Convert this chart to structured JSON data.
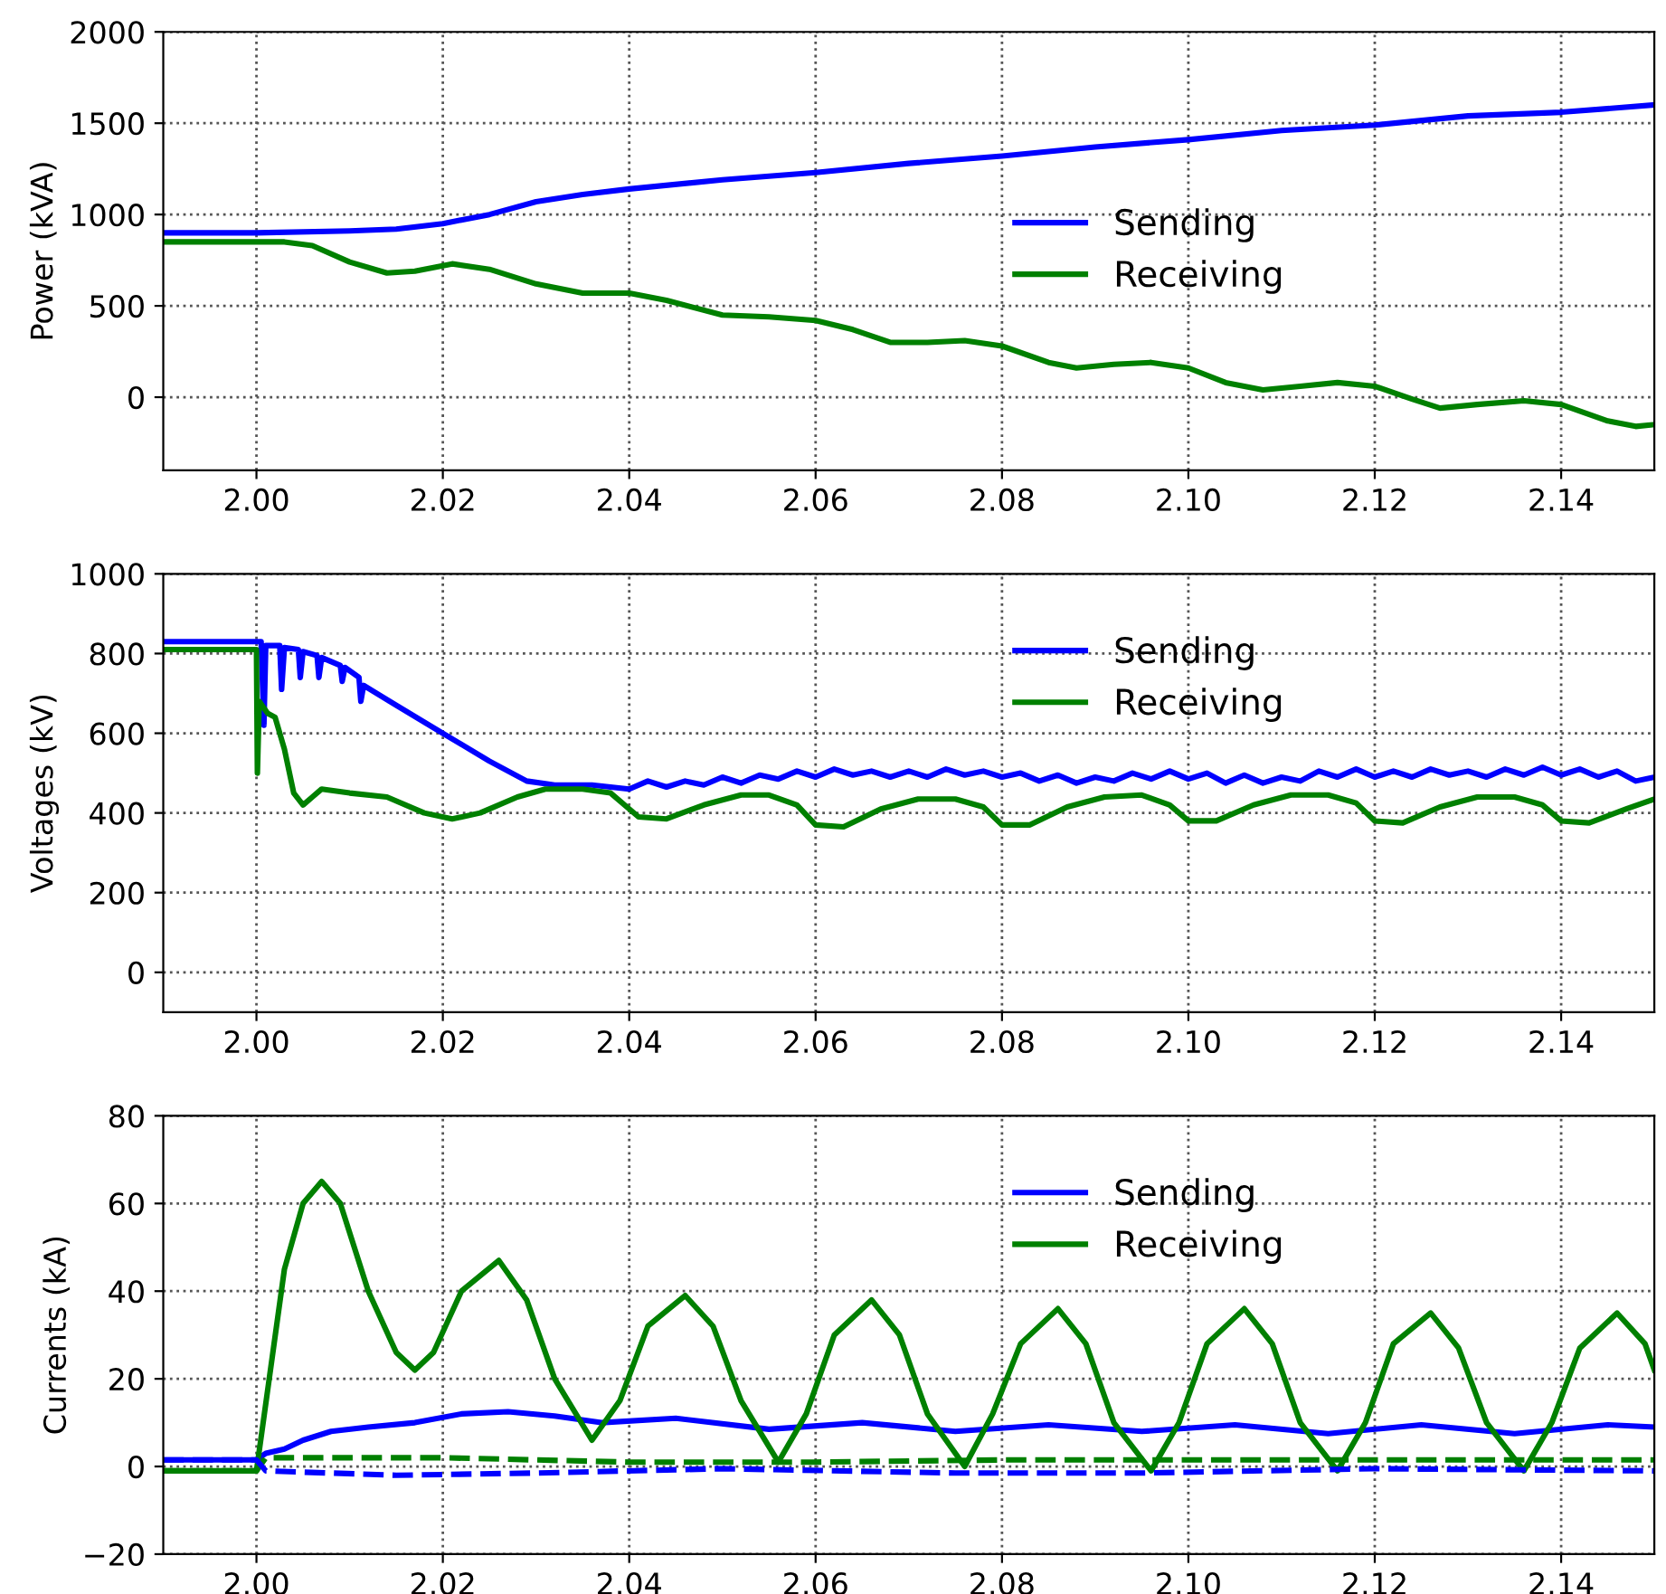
{
  "chart_data": [
    {
      "type": "line",
      "ylabel": "Power (kVA)",
      "xlim": [
        1.99,
        2.15
      ],
      "ylim": [
        -400,
        2000
      ],
      "yticks": [
        0,
        500,
        1000,
        1500,
        2000
      ],
      "xticks": [
        {
          "value": 2.0,
          "label": "2.00"
        },
        {
          "value": 2.02,
          "label": "2.02"
        },
        {
          "value": 2.04,
          "label": "2.04"
        },
        {
          "value": 2.06,
          "label": "2.06"
        },
        {
          "value": 2.08,
          "label": "2.08"
        },
        {
          "value": 2.1,
          "label": "2.10"
        },
        {
          "value": 2.12,
          "label": "2.12"
        },
        {
          "value": 2.14,
          "label": "2.14"
        }
      ],
      "grid": true,
      "legend": "center right",
      "line_style": "solid",
      "series": [
        {
          "name": "Sending",
          "color": "#0000ff",
          "x": [
            1.99,
            2.0,
            2.01,
            2.015,
            2.02,
            2.025,
            2.03,
            2.035,
            2.04,
            2.05,
            2.06,
            2.07,
            2.08,
            2.09,
            2.1,
            2.11,
            2.12,
            2.13,
            2.14,
            2.15
          ],
          "values": [
            900,
            900,
            910,
            920,
            950,
            1000,
            1070,
            1110,
            1140,
            1190,
            1230,
            1280,
            1320,
            1370,
            1410,
            1460,
            1490,
            1540,
            1560,
            1600
          ]
        },
        {
          "name": "Receiving",
          "color": "#008000",
          "x": [
            1.99,
            2.003,
            2.006,
            2.01,
            2.014,
            2.017,
            2.021,
            2.025,
            2.03,
            2.035,
            2.04,
            2.044,
            2.05,
            2.055,
            2.06,
            2.064,
            2.068,
            2.072,
            2.076,
            2.08,
            2.085,
            2.088,
            2.092,
            2.096,
            2.1,
            2.104,
            2.108,
            2.112,
            2.116,
            2.12,
            2.124,
            2.127,
            2.131,
            2.136,
            2.14,
            2.145,
            2.148,
            2.15
          ],
          "values": [
            850,
            850,
            830,
            740,
            680,
            690,
            730,
            700,
            620,
            570,
            570,
            530,
            450,
            440,
            420,
            370,
            300,
            300,
            310,
            280,
            190,
            160,
            180,
            190,
            160,
            80,
            40,
            60,
            80,
            60,
            -10,
            -60,
            -40,
            -20,
            -40,
            -130,
            -160,
            -150
          ]
        }
      ]
    },
    {
      "type": "line",
      "ylabel": "Voltages (kV)",
      "xlim": [
        1.99,
        2.15
      ],
      "ylim": [
        -100,
        1000
      ],
      "yticks": [
        0,
        200,
        400,
        600,
        800,
        1000
      ],
      "xticks": [
        {
          "value": 2.0,
          "label": "2.00"
        },
        {
          "value": 2.02,
          "label": "2.02"
        },
        {
          "value": 2.04,
          "label": "2.04"
        },
        {
          "value": 2.06,
          "label": "2.06"
        },
        {
          "value": 2.08,
          "label": "2.08"
        },
        {
          "value": 2.1,
          "label": "2.10"
        },
        {
          "value": 2.12,
          "label": "2.12"
        },
        {
          "value": 2.14,
          "label": "2.14"
        }
      ],
      "grid": true,
      "legend": "upper right",
      "line_style": "solid",
      "series": [
        {
          "name": "Sending",
          "color": "#0000ff",
          "x": [
            1.99,
            2.0005,
            2.0008,
            2.001,
            2.0025,
            2.0027,
            2.003,
            2.0045,
            2.0047,
            2.005,
            2.0065,
            2.0067,
            2.007,
            2.009,
            2.0092,
            2.0095,
            2.011,
            2.0112,
            2.0115,
            2.015,
            2.02,
            2.025,
            2.029,
            2.032,
            2.036,
            2.04,
            2.042,
            2.044,
            2.046,
            2.048,
            2.05,
            2.052,
            2.054,
            2.056,
            2.058,
            2.06,
            2.062,
            2.064,
            2.066,
            2.068,
            2.07,
            2.072,
            2.074,
            2.076,
            2.078,
            2.08,
            2.082,
            2.084,
            2.086,
            2.088,
            2.09,
            2.092,
            2.094,
            2.096,
            2.098,
            2.1,
            2.102,
            2.104,
            2.106,
            2.108,
            2.11,
            2.112,
            2.114,
            2.116,
            2.118,
            2.12,
            2.122,
            2.124,
            2.126,
            2.128,
            2.13,
            2.132,
            2.134,
            2.136,
            2.138,
            2.14,
            2.142,
            2.144,
            2.146,
            2.148,
            2.15
          ],
          "values": [
            830,
            830,
            620,
            820,
            820,
            710,
            815,
            810,
            740,
            805,
            795,
            740,
            790,
            770,
            730,
            765,
            740,
            680,
            720,
            670,
            600,
            530,
            480,
            470,
            470,
            460,
            480,
            465,
            480,
            470,
            490,
            475,
            495,
            485,
            505,
            490,
            510,
            495,
            505,
            490,
            505,
            490,
            510,
            495,
            505,
            490,
            500,
            480,
            495,
            475,
            490,
            480,
            500,
            485,
            505,
            485,
            500,
            475,
            495,
            475,
            490,
            480,
            505,
            490,
            510,
            490,
            505,
            490,
            510,
            495,
            505,
            490,
            510,
            495,
            515,
            495,
            510,
            490,
            505,
            480,
            490
          ]
        },
        {
          "name": "Receiving",
          "color": "#008000",
          "x": [
            1.99,
            2.0,
            2.0001,
            2.0003,
            2.0012,
            2.002,
            2.003,
            2.004,
            2.005,
            2.006,
            2.007,
            2.01,
            2.014,
            2.018,
            2.021,
            2.024,
            2.028,
            2.031,
            2.035,
            2.038,
            2.041,
            2.044,
            2.048,
            2.052,
            2.055,
            2.058,
            2.06,
            2.063,
            2.067,
            2.071,
            2.075,
            2.078,
            2.08,
            2.083,
            2.087,
            2.091,
            2.095,
            2.098,
            2.1,
            2.103,
            2.107,
            2.111,
            2.115,
            2.118,
            2.12,
            2.123,
            2.127,
            2.131,
            2.135,
            2.138,
            2.14,
            2.143,
            2.147,
            2.15
          ],
          "values": [
            810,
            810,
            500,
            680,
            650,
            640,
            560,
            450,
            420,
            440,
            460,
            450,
            440,
            400,
            385,
            400,
            440,
            460,
            460,
            450,
            390,
            385,
            420,
            445,
            445,
            420,
            370,
            365,
            410,
            435,
            435,
            415,
            370,
            370,
            415,
            440,
            445,
            420,
            380,
            380,
            420,
            445,
            445,
            425,
            380,
            375,
            415,
            440,
            440,
            420,
            380,
            375,
            410,
            435
          ]
        }
      ]
    },
    {
      "type": "line",
      "ylabel": "Currents (kA)",
      "xlim": [
        1.99,
        2.15
      ],
      "ylim": [
        -20,
        80
      ],
      "yticks": [
        {
          "value": -20,
          "label": "−20"
        },
        0,
        20,
        40,
        60,
        80
      ],
      "xticks": [
        {
          "value": 2.0,
          "label": "2.00"
        },
        {
          "value": 2.02,
          "label": "2.02"
        },
        {
          "value": 2.04,
          "label": "2.04"
        },
        {
          "value": 2.06,
          "label": "2.06"
        },
        {
          "value": 2.08,
          "label": "2.08"
        },
        {
          "value": 2.1,
          "label": "2.10"
        },
        {
          "value": 2.12,
          "label": "2.12"
        },
        {
          "value": 2.14,
          "label": "2.14"
        }
      ],
      "grid": true,
      "legend": "upper right",
      "line_style": "solid",
      "series": [
        {
          "name": "Sending",
          "color": "#0000ff",
          "x": [
            1.99,
            2.0,
            2.001,
            2.003,
            2.005,
            2.008,
            2.012,
            2.017,
            2.022,
            2.027,
            2.032,
            2.037,
            2.045,
            2.055,
            2.065,
            2.075,
            2.085,
            2.095,
            2.105,
            2.115,
            2.125,
            2.135,
            2.145,
            2.15
          ],
          "values": [
            1.5,
            1.5,
            3,
            4,
            6,
            8,
            9,
            10,
            12,
            12.5,
            11.5,
            10,
            11,
            8.5,
            10,
            8,
            9.5,
            8,
            9.5,
            7.5,
            9.5,
            7.5,
            9.5,
            9
          ]
        },
        {
          "name": "Receiving",
          "color": "#008000",
          "x": [
            1.99,
            2.0,
            2.003,
            2.005,
            2.007,
            2.009,
            2.012,
            2.015,
            2.017,
            2.019,
            2.022,
            2.026,
            2.029,
            2.032,
            2.036,
            2.039,
            2.042,
            2.046,
            2.049,
            2.052,
            2.056,
            2.059,
            2.062,
            2.066,
            2.069,
            2.072,
            2.076,
            2.079,
            2.082,
            2.086,
            2.089,
            2.092,
            2.096,
            2.099,
            2.102,
            2.106,
            2.109,
            2.112,
            2.116,
            2.119,
            2.122,
            2.126,
            2.129,
            2.132,
            2.136,
            2.139,
            2.142,
            2.146,
            2.149,
            2.15
          ],
          "values": [
            -1,
            -1,
            45,
            60,
            65,
            60,
            40,
            26,
            22,
            26,
            40,
            47,
            38,
            20,
            6,
            15,
            32,
            39,
            32,
            15,
            1,
            12,
            30,
            38,
            30,
            12,
            0,
            12,
            28,
            36,
            28,
            10,
            -1,
            10,
            28,
            36,
            28,
            10,
            -1,
            10,
            28,
            35,
            27,
            10,
            -1,
            10,
            27,
            35,
            28,
            22
          ]
        },
        {
          "color": "#008000",
          "line_style": "dashed",
          "x": [
            1.99,
            2.0,
            2.001,
            2.02,
            2.04,
            2.06,
            2.08,
            2.15
          ],
          "values": [
            -1,
            -1,
            2,
            2,
            1,
            1,
            1.5,
            1.5
          ]
        },
        {
          "color": "#0000ff",
          "line_style": "dashed",
          "x": [
            1.99,
            2.0,
            2.001,
            2.015,
            2.03,
            2.05,
            2.075,
            2.095,
            2.12,
            2.15
          ],
          "values": [
            1.5,
            1.5,
            -1,
            -2,
            -1.5,
            -0.5,
            -1.5,
            -1.5,
            -0.5,
            -1
          ]
        }
      ]
    }
  ]
}
